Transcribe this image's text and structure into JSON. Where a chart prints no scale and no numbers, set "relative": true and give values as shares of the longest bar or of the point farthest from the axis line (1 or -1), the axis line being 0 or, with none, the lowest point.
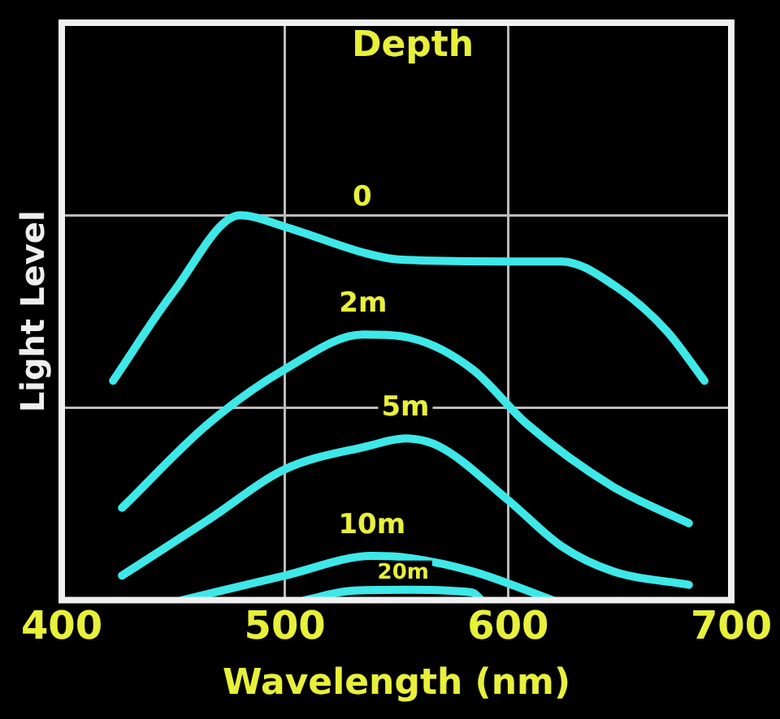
{
  "chart_data": {
    "type": "line",
    "relative": true,
    "legend_title": "Depth",
    "xlabel": "Wavelength (nm)",
    "ylabel": "Light Level",
    "xlim": [
      400,
      700
    ],
    "xticks": [
      400,
      500,
      600,
      700
    ],
    "grid": true,
    "legend": false,
    "marker": "none",
    "line_style": "solid",
    "series": [
      {
        "name": "0",
        "color": "#3ee8e8",
        "x": [
          423,
          450,
          480,
          500,
          537,
          551,
          600,
          624,
          647,
          671,
          688
        ],
        "values": [
          0.57,
          0.8,
          1,
          0.97,
          0.9,
          0.885,
          0.88,
          0.88,
          0.82,
          0.7,
          0.57
        ]
      },
      {
        "name": "2m",
        "color": "#3ee8e8",
        "x": [
          427,
          466,
          500,
          535,
          557,
          584,
          608,
          647,
          681
        ],
        "values": [
          0.24,
          0.46,
          0.6,
          0.69,
          0.68,
          0.6,
          0.46,
          0.295,
          0.2
        ]
      },
      {
        "name": "5m",
        "color": "#3ee8e8",
        "x": [
          427,
          466,
          500,
          537,
          554,
          569,
          600,
          624,
          647,
          681
        ],
        "values": [
          0.064,
          0.21,
          0.34,
          0.4,
          0.42,
          0.4,
          0.26,
          0.14,
          0.075,
          0.04
        ]
      },
      {
        "name": "10m",
        "color": "#3ee8e8",
        "x": [
          454,
          500,
          539,
          555,
          584,
          620
        ],
        "values": [
          0,
          0.064,
          0.115,
          0.11,
          0.075,
          0
        ]
      },
      {
        "name": "20m",
        "color": "#3ee8e8",
        "x": [
          509,
          529,
          553,
          584,
          588
        ],
        "values": [
          0,
          0.024,
          0.027,
          0.02,
          0
        ]
      }
    ]
  }
}
